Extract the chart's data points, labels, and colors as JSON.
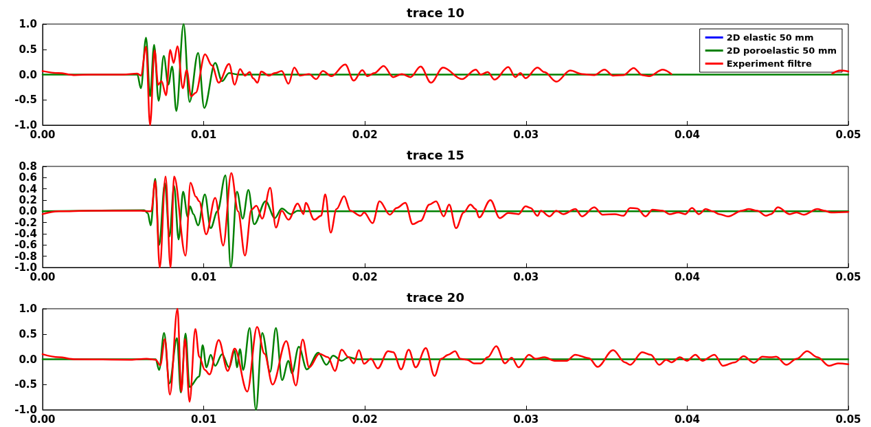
{
  "chart_data": [
    {
      "type": "line",
      "title": "trace 10",
      "legend": "top right",
      "marker": "none",
      "grid": false,
      "xlim": [
        0,
        0.05
      ],
      "xticks": [
        {
          "value": 0,
          "label": "0.00"
        },
        {
          "value": 0.01,
          "label": "0.01"
        },
        {
          "value": 0.02,
          "label": "0.02"
        },
        {
          "value": 0.03,
          "label": "0.03"
        },
        {
          "value": 0.04,
          "label": "0.04"
        },
        {
          "value": 0.05,
          "label": "0.05"
        }
      ],
      "ylim": [
        -1,
        1
      ],
      "yticks": [
        {
          "value": -1,
          "label": "-1.0"
        },
        -0.5,
        {
          "value": 0,
          "label": "0.0"
        },
        0.5,
        {
          "value": 1,
          "label": "1.0"
        }
      ],
      "series": [
        {
          "name": "2D elastic 50 mm",
          "color": "#0000ff"
        },
        {
          "name": "2D poroelastic 50 mm",
          "color": "#008000",
          "x": [
            0,
            0.00588,
            0.0061,
            0.00642,
            0.00667,
            0.00692,
            0.0072,
            0.00752,
            0.0078,
            0.00804,
            0.0083,
            0.00875,
            0.00912,
            0.00965,
            0.01003,
            0.01071,
            0.01114,
            0.01157,
            0.01214,
            0.05
          ],
          "values": [
            0,
            0,
            -0.27,
            0.73,
            -0.43,
            0.59,
            -0.52,
            0.37,
            -0.2,
            0.16,
            -0.72,
            1.0,
            -0.54,
            0.43,
            -0.66,
            0.23,
            -0.13,
            0.03,
            0,
            0
          ]
        },
        {
          "name": "Experiment filtre",
          "color": "#ff0000",
          "x": [
            0,
            0.001,
            0.002,
            0.003,
            0.005,
            0.00588,
            0.0061,
            0.00642,
            0.00667,
            0.00695,
            0.00717,
            0.00738,
            0.00766,
            0.00792,
            0.00813,
            0.00837,
            0.0087,
            0.00894,
            0.00922,
            0.0095,
            0.01008,
            0.01051,
            0.01093,
            0.01157,
            0.01192,
            0.01225,
            0.01256,
            0.01285,
            0.01306,
            0.01334,
            0.01356,
            0.01405,
            0.01441,
            0.01484,
            0.01526,
            0.01562,
            0.01597,
            0.01654,
            0.01697,
            0.01739,
            0.01792,
            0.01878,
            0.01931,
            0.01984,
            0.02016,
            0.02059,
            0.02116,
            0.02176,
            0.02229,
            0.02283,
            0.02346,
            0.0241,
            0.02485,
            0.02602,
            0.02688,
            0.02719,
            0.02762,
            0.02805,
            0.0289,
            0.02933,
            0.02965,
            0.02997,
            0.03071,
            0.03114,
            0.03188,
            0.03274,
            0.03348,
            0.03423,
            0.03487,
            0.0354,
            0.03604,
            0.03668,
            0.03721,
            0.03764,
            0.03849,
            0.03902,
            0.044,
            0.049,
            0.0495,
            0.05
          ],
          "values": [
            0.07,
            0.03,
            -0.01,
            0,
            0,
            0.02,
            -0.02,
            0.55,
            -1.0,
            0.48,
            -0.2,
            -0.13,
            -0.41,
            0.49,
            0.23,
            0.56,
            -0.27,
            0.09,
            -0.43,
            -0.36,
            0.4,
            0.18,
            -0.16,
            0.21,
            -0.2,
            0.11,
            -0.02,
            0.05,
            -0.07,
            -0.16,
            0.06,
            -0.02,
            0.03,
            0.07,
            -0.18,
            0.14,
            -0.02,
            0.01,
            -0.09,
            0.07,
            -0.03,
            0.2,
            -0.12,
            0.09,
            -0.03,
            0.03,
            0.17,
            -0.05,
            0.01,
            -0.05,
            0.16,
            -0.16,
            0.14,
            -0.09,
            0.1,
            0,
            0.05,
            -0.1,
            0.15,
            -0.05,
            0.03,
            -0.07,
            0.14,
            0.05,
            -0.14,
            0.08,
            0.01,
            -0.01,
            0.1,
            -0.02,
            -0.01,
            0.13,
            -0.01,
            -0.03,
            0.1,
            0.01,
            null,
            0.02,
            0.08,
            0.06
          ]
        }
      ]
    },
    {
      "type": "line",
      "title": "trace 15",
      "marker": "none",
      "grid": false,
      "xlim": [
        0,
        0.05
      ],
      "xticks": [
        {
          "value": 0,
          "label": "0.00"
        },
        {
          "value": 0.01,
          "label": "0.01"
        },
        {
          "value": 0.02,
          "label": "0.02"
        },
        {
          "value": 0.03,
          "label": "0.03"
        },
        {
          "value": 0.04,
          "label": "0.04"
        },
        {
          "value": 0.05,
          "label": "0.05"
        }
      ],
      "ylim": [
        -1,
        0.8
      ],
      "yticks": [
        {
          "value": -1,
          "label": "-1.0"
        },
        -0.8,
        -0.6,
        -0.4,
        -0.2,
        {
          "value": 0,
          "label": "0.0"
        },
        0.2,
        0.4,
        0.6,
        0.8
      ],
      "series": [
        {
          "color": "#008000",
          "x": [
            0,
            0.00631,
            0.00652,
            0.00671,
            0.00699,
            0.00723,
            0.00759,
            0.00787,
            0.00816,
            0.00844,
            0.00872,
            0.00901,
            0.00915,
            0.00936,
            0.00965,
            0.01007,
            0.01043,
            0.01085,
            0.01135,
            0.01168,
            0.01206,
            0.01242,
            0.01277,
            0.01313,
            0.01384,
            0.01441,
            0.01484,
            0.0154,
            0.01583,
            0.01654,
            0.05
          ],
          "values": [
            0,
            0.02,
            -0.03,
            -0.25,
            0.58,
            -0.6,
            0.5,
            -0.45,
            0.45,
            -0.5,
            0.35,
            -0.1,
            0.09,
            -0.05,
            -0.25,
            0.3,
            -0.3,
            0,
            0.64,
            -1.0,
            0.35,
            -0.13,
            0.38,
            -0.23,
            0.18,
            -0.12,
            0.05,
            -0.05,
            0.01,
            0,
            0
          ]
        },
        {
          "color": "#ff0000",
          "x": [
            0,
            0.001,
            0.003,
            0.005,
            0.0061,
            0.00674,
            0.00699,
            0.00727,
            0.00763,
            0.00794,
            0.00816,
            0.00887,
            0.00918,
            0.00951,
            0.00972,
            0.01015,
            0.01071,
            0.01121,
            0.01171,
            0.01213,
            0.01256,
            0.01296,
            0.01327,
            0.01363,
            0.01412,
            0.01448,
            0.01484,
            0.01526,
            0.01583,
            0.01619,
            0.01633,
            0.01686,
            0.01728,
            0.01754,
            0.01788,
            0.01824,
            0.01871,
            0.0191,
            0.01974,
            0.01995,
            0.02048,
            0.02091,
            0.02155,
            0.02197,
            0.02251,
            0.02297,
            0.02346,
            0.024,
            0.02442,
            0.02489,
            0.02523,
            0.02566,
            0.02613,
            0.02655,
            0.02687,
            0.02709,
            0.02779,
            0.02837,
            0.0289,
            0.02954,
            0.02997,
            0.03028,
            0.03071,
            0.03092,
            0.03146,
            0.03188,
            0.03231,
            0.03306,
            0.03348,
            0.03423,
            0.03476,
            0.03551,
            0.03604,
            0.03646,
            0.03689,
            0.03742,
            0.03785,
            0.03849,
            0.03891,
            0.03945,
            0.03987,
            0.0403,
            0.04073,
            0.04115,
            0.04158,
            0.042,
            0.04254,
            0.04339,
            0.04382,
            0.04435,
            0.04489,
            0.0452,
            0.04563,
            0.04637,
            0.0468,
            0.04723,
            0.04808,
            0.04851,
            0.04893,
            0.05
          ],
          "values": [
            -0.05,
            0,
            0.01,
            0.01,
            0.01,
            0,
            0.54,
            -1.0,
            0.62,
            -1.0,
            0.62,
            -0.79,
            0.51,
            0.26,
            0.18,
            -0.41,
            0.24,
            -0.61,
            0.68,
            0,
            -0.79,
            0.03,
            0.1,
            -0.13,
            0.42,
            -0.29,
            0.01,
            -0.15,
            0.14,
            -0.05,
            0.15,
            -0.15,
            -0.08,
            0.3,
            -0.38,
            0.04,
            0.27,
            0.01,
            -0.08,
            -0.02,
            -0.21,
            0.18,
            -0.06,
            0.06,
            0.15,
            -0.23,
            -0.17,
            0.12,
            0.18,
            -0.09,
            0.12,
            -0.3,
            -0.02,
            0.12,
            0.04,
            -0.11,
            0.2,
            -0.12,
            -0.03,
            -0.05,
            0.09,
            0.06,
            -0.08,
            0.01,
            -0.09,
            0.01,
            -0.05,
            0.04,
            -0.09,
            0.07,
            -0.06,
            -0.05,
            -0.08,
            0.06,
            0.05,
            -0.09,
            0.03,
            0.01,
            -0.05,
            -0.02,
            -0.05,
            0.06,
            -0.05,
            0.04,
            0,
            -0.05,
            -0.09,
            0.01,
            0.04,
            0.01,
            -0.08,
            -0.05,
            0.07,
            -0.05,
            -0.02,
            -0.06,
            0.04,
            0.01,
            -0.02,
            -0.01
          ]
        }
      ]
    },
    {
      "type": "line",
      "title": "trace 20",
      "marker": "none",
      "grid": false,
      "xlim": [
        0,
        0.05
      ],
      "xticks": [
        {
          "value": 0,
          "label": "0.00"
        },
        {
          "value": 0.01,
          "label": "0.01"
        },
        {
          "value": 0.02,
          "label": "0.02"
        },
        {
          "value": 0.03,
          "label": "0.03"
        },
        {
          "value": 0.04,
          "label": "0.04"
        },
        {
          "value": 0.05,
          "label": "0.05"
        }
      ],
      "ylim": [
        -1,
        1
      ],
      "yticks": [
        {
          "value": -1,
          "label": "-1.0"
        },
        -0.5,
        {
          "value": 0,
          "label": "0.0"
        },
        0.5,
        {
          "value": 1,
          "label": "1.0"
        }
      ],
      "series": [
        {
          "color": "#008000",
          "x": [
            0,
            0.00702,
            0.00723,
            0.00754,
            0.00787,
            0.00834,
            0.00858,
            0.00887,
            0.00912,
            0.00972,
            0.00993,
            0.01017,
            0.01043,
            0.01071,
            0.01114,
            0.01157,
            0.01192,
            0.01206,
            0.01225,
            0.01245,
            0.01285,
            0.01324,
            0.01363,
            0.01412,
            0.01448,
            0.01486,
            0.01526,
            0.01547,
            0.0159,
            0.0164,
            0.01711,
            0.01761,
            0.01803,
            0.01856,
            0.01899,
            0.01952,
            0.05
          ],
          "values": [
            0,
            0,
            -0.21,
            0.52,
            -0.48,
            0.42,
            -0.66,
            0.51,
            -0.55,
            -0.34,
            0.28,
            -0.16,
            0.09,
            -0.13,
            0.1,
            -0.16,
            0.17,
            -0.16,
            0.2,
            -0.21,
            0.62,
            -1.0,
            0.52,
            -0.25,
            0.62,
            -0.41,
            -0.03,
            -0.28,
            0.25,
            -0.2,
            0.13,
            -0.11,
            0.07,
            -0.03,
            0.04,
            0,
            0
          ]
        },
        {
          "color": "#ff0000",
          "x": [
            0,
            0.001,
            0.002,
            0.00546,
            0.00645,
            0.00702,
            0.0073,
            0.00759,
            0.0079,
            0.00837,
            0.00861,
            0.00884,
            0.00912,
            0.00948,
            0.00972,
            0.01007,
            0.01036,
            0.01093,
            0.01149,
            0.01192,
            0.0127,
            0.01331,
            0.01377,
            0.01427,
            0.01512,
            0.01572,
            0.01614,
            0.01654,
            0.01718,
            0.01771,
            0.01814,
            0.01856,
            0.01899,
            0.01931,
            0.01963,
            0.01995,
            0.02038,
            0.0208,
            0.02144,
            0.02176,
            0.02225,
            0.02272,
            0.02315,
            0.02378,
            0.02432,
            0.02474,
            0.02517,
            0.0256,
            0.02592,
            0.02634,
            0.02677,
            0.02719,
            0.02762,
            0.02815,
            0.02869,
            0.02911,
            0.02954,
            0.03018,
            0.0306,
            0.03114,
            0.03178,
            0.03252,
            0.03305,
            0.03391,
            0.03444,
            0.0354,
            0.03614,
            0.03646,
            0.03721,
            0.03774,
            0.03827,
            0.0387,
            0.03902,
            0.03955,
            0.03998,
            0.04051,
            0.04094,
            0.04169,
            0.04222,
            0.04296,
            0.0435,
            0.04414,
            0.04467,
            0.0452,
            0.04552,
            0.04616,
            0.0468,
            0.04744,
            0.04808,
            0.04882,
            0.04936,
            0.05
          ],
          "values": [
            0.1,
            0.04,
            0,
            -0.01,
            0.01,
            -0.01,
            -0.12,
            0.4,
            -0.7,
            1.0,
            -0.64,
            0.4,
            -0.84,
            0.6,
            0.05,
            -0.21,
            -0.3,
            0.38,
            -0.23,
            0.21,
            -0.64,
            0.64,
            0.11,
            -0.5,
            0.36,
            -0.52,
            0.39,
            -0.16,
            0.11,
            0.04,
            -0.23,
            0.19,
            0.04,
            -0.08,
            0.18,
            -0.09,
            0.01,
            -0.18,
            0.16,
            0.14,
            -0.2,
            0.19,
            -0.16,
            0.22,
            -0.33,
            0.01,
            0.09,
            0.16,
            0.01,
            -0.01,
            -0.08,
            -0.08,
            0.04,
            0.26,
            -0.08,
            0.03,
            -0.16,
            0.09,
            0.01,
            0.04,
            -0.03,
            -0.03,
            0.09,
            0.02,
            -0.15,
            0.18,
            -0.06,
            -0.11,
            0.14,
            0.09,
            -0.11,
            -0.01,
            -0.06,
            0.04,
            -0.03,
            0.09,
            -0.03,
            0.09,
            -0.13,
            -0.06,
            0.06,
            -0.07,
            0.05,
            0.04,
            0.05,
            -0.11,
            0.01,
            0.16,
            0.04,
            -0.13,
            -0.08,
            -0.1
          ]
        }
      ]
    }
  ]
}
